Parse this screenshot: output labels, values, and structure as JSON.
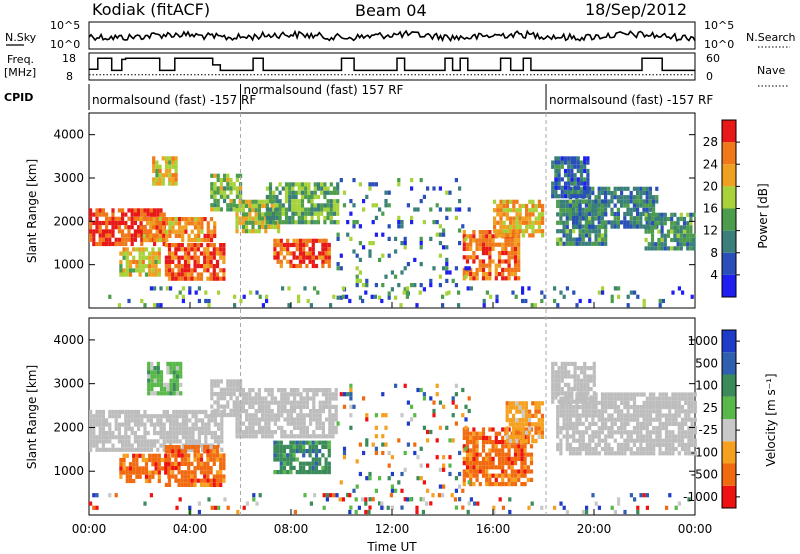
{
  "header": {
    "station": "Kodiak (fitACF)",
    "beam": "Beam 04",
    "date": "18/Sep/2012"
  },
  "noise_panel": {
    "left_label": "N.Sky",
    "right_label": "N.Search",
    "y_ticks_left": [
      "10^5",
      "10^0"
    ],
    "y_ticks_right": [
      "10^5",
      "10^0"
    ]
  },
  "freq_panel": {
    "left_label_1": "Freq.",
    "left_label_2": "[MHz]",
    "right_label": "Nave",
    "y_ticks_left": [
      "18",
      "8"
    ],
    "y_ticks_right": [
      "60",
      "0"
    ],
    "freq_segments": [
      {
        "start": 0.0,
        "end": 0.35,
        "level": 0.35
      },
      {
        "start": 0.35,
        "end": 0.9,
        "level": 0.85
      },
      {
        "start": 0.9,
        "end": 1.3,
        "level": 0.3
      },
      {
        "start": 1.3,
        "end": 1.45,
        "level": 0.8
      },
      {
        "start": 1.45,
        "end": 2.8,
        "level": 0.85
      },
      {
        "start": 2.8,
        "end": 3.4,
        "level": 0.3
      },
      {
        "start": 3.4,
        "end": 4.9,
        "level": 0.85
      },
      {
        "start": 4.9,
        "end": 5.2,
        "level": 0.55
      },
      {
        "start": 5.2,
        "end": 6.5,
        "level": 0.3
      },
      {
        "start": 6.5,
        "end": 6.9,
        "level": 0.85
      },
      {
        "start": 6.9,
        "end": 10.0,
        "level": 0.3
      },
      {
        "start": 10.0,
        "end": 10.5,
        "level": 0.85
      },
      {
        "start": 10.5,
        "end": 12.2,
        "level": 0.3
      },
      {
        "start": 12.2,
        "end": 12.5,
        "level": 0.85
      },
      {
        "start": 12.5,
        "end": 14.1,
        "level": 0.3
      },
      {
        "start": 14.1,
        "end": 14.4,
        "level": 0.85
      },
      {
        "start": 14.4,
        "end": 14.7,
        "level": 0.3
      },
      {
        "start": 14.7,
        "end": 15.0,
        "level": 0.85
      },
      {
        "start": 15.0,
        "end": 16.3,
        "level": 0.3
      },
      {
        "start": 16.3,
        "end": 16.7,
        "level": 0.85
      },
      {
        "start": 16.7,
        "end": 17.2,
        "level": 0.3
      },
      {
        "start": 17.2,
        "end": 17.5,
        "level": 0.85
      },
      {
        "start": 17.5,
        "end": 18.3,
        "level": 0.3
      },
      {
        "start": 18.3,
        "end": 21.9,
        "level": 0.3
      },
      {
        "start": 21.9,
        "end": 22.7,
        "level": 0.85
      },
      {
        "start": 22.7,
        "end": 24.0,
        "level": 0.3
      }
    ],
    "nave_level": 0.1
  },
  "cpid": {
    "label": "CPID",
    "segments": [
      {
        "text": "normalsound (fast) -157 RF",
        "start": 0.0
      },
      {
        "text": "normalsound (fast) 157 RF",
        "start": 6.0
      },
      {
        "text": "normalsound (fast) -157 RF",
        "start": 18.1
      }
    ]
  },
  "colors": {
    "ground_scatter": "#bdbdbd",
    "power_scale": [
      "#1e1ef0",
      "#2a4fb8",
      "#3a7f7a",
      "#4d9c4d",
      "#a8d23a",
      "#f0a020",
      "#f07818",
      "#e81818"
    ],
    "velocity_scale": [
      "#ee1111",
      "#f26a10",
      "#f6a020",
      "#c8c8c8",
      "#59b84a",
      "#3a8a5a",
      "#2e5fb0",
      "#1e3cc8"
    ]
  },
  "chart_data": [
    {
      "type": "heatmap",
      "panel": "power",
      "ylabel": "Slant Range [km]",
      "ylim": [
        0,
        4500
      ],
      "yticks": [
        1000,
        2000,
        3000,
        4000
      ],
      "xlim": [
        0,
        24
      ],
      "colorbar_label": "Power [dB]",
      "colorbar_ticks": [
        "4",
        "8",
        "12",
        "16",
        "20",
        "24",
        "28"
      ],
      "colorbar_range": [
        0,
        32
      ],
      "regions": [
        {
          "t0": 0.0,
          "t1": 3.0,
          "r0": 1500,
          "r1": 2300,
          "val": 27
        },
        {
          "t0": 2.0,
          "t1": 5.0,
          "r0": 1600,
          "r1": 2100,
          "val": 22
        },
        {
          "t0": 3.0,
          "t1": 5.3,
          "r0": 700,
          "r1": 1500,
          "val": 26
        },
        {
          "t0": 1.2,
          "t1": 2.8,
          "r0": 800,
          "r1": 1400,
          "val": 18
        },
        {
          "t0": 2.5,
          "t1": 3.5,
          "r0": 2900,
          "r1": 3500,
          "val": 18
        },
        {
          "t0": 4.8,
          "t1": 6.0,
          "r0": 2300,
          "r1": 3100,
          "val": 14
        },
        {
          "t0": 5.8,
          "t1": 7.5,
          "r0": 1800,
          "r1": 2500,
          "val": 16
        },
        {
          "t0": 7.0,
          "t1": 9.8,
          "r0": 2000,
          "r1": 2900,
          "val": 12
        },
        {
          "t0": 7.3,
          "t1": 9.5,
          "r0": 1000,
          "r1": 1600,
          "val": 25
        },
        {
          "t0": 14.8,
          "t1": 17.0,
          "r0": 700,
          "r1": 1800,
          "val": 24
        },
        {
          "t0": 16.0,
          "t1": 18.0,
          "r0": 1700,
          "r1": 2500,
          "val": 20
        },
        {
          "t0": 18.5,
          "t1": 20.5,
          "r0": 1500,
          "r1": 2500,
          "val": 10
        },
        {
          "t0": 19.0,
          "t1": 22.5,
          "r0": 1900,
          "r1": 2800,
          "val": 8
        },
        {
          "t0": 22.0,
          "t1": 24.0,
          "r0": 1400,
          "r1": 2200,
          "val": 10
        },
        {
          "t0": 18.3,
          "t1": 19.8,
          "r0": 2600,
          "r1": 3500,
          "val": 6
        },
        {
          "t0": 9.8,
          "t1": 15.0,
          "r0": 200,
          "r1": 3000,
          "val": 6,
          "sparse": true
        },
        {
          "t0": 0.0,
          "t1": 24.0,
          "r0": 100,
          "r1": 500,
          "val": 14,
          "sparse": true
        }
      ]
    },
    {
      "type": "heatmap",
      "panel": "velocity",
      "ylabel": "Slant Range [km]",
      "xlabel": "Time UT",
      "ylim": [
        0,
        4500
      ],
      "yticks": [
        1000,
        2000,
        3000,
        4000
      ],
      "xlim": [
        0,
        24
      ],
      "xticks": [
        "00:00",
        "04:00",
        "08:00",
        "12:00",
        "16:00",
        "20:00",
        "00:00"
      ],
      "colorbar_label": "Velocity [m s⁻¹]",
      "colorbar_ticks": [
        "-1000",
        "-500",
        "-100",
        "-25",
        "25",
        "100",
        "500",
        "1000"
      ],
      "regions": [
        {
          "t0": 0.0,
          "t1": 5.3,
          "r0": 1500,
          "r1": 2400,
          "val": "ground"
        },
        {
          "t0": 3.0,
          "t1": 5.3,
          "r0": 700,
          "r1": 1600,
          "val": "-500"
        },
        {
          "t0": 1.2,
          "t1": 3.2,
          "r0": 800,
          "r1": 1400,
          "val": "-500"
        },
        {
          "t0": 2.3,
          "t1": 3.6,
          "r0": 2800,
          "r1": 3500,
          "val": "100"
        },
        {
          "t0": 4.8,
          "t1": 6.0,
          "r0": 2300,
          "r1": 3100,
          "val": "ground"
        },
        {
          "t0": 5.8,
          "t1": 9.8,
          "r0": 1800,
          "r1": 2900,
          "val": "ground"
        },
        {
          "t0": 7.3,
          "t1": 9.5,
          "r0": 1000,
          "r1": 1700,
          "val": "500"
        },
        {
          "t0": 14.8,
          "t1": 17.5,
          "r0": 700,
          "r1": 2000,
          "val": "-500"
        },
        {
          "t0": 16.5,
          "t1": 18.0,
          "r0": 1700,
          "r1": 2600,
          "val": "-100"
        },
        {
          "t0": 18.5,
          "t1": 24.0,
          "r0": 1400,
          "r1": 2800,
          "val": "ground"
        },
        {
          "t0": 18.3,
          "t1": 20.0,
          "r0": 2600,
          "r1": 3500,
          "val": "ground"
        },
        {
          "t0": 9.8,
          "t1": 15.0,
          "r0": 200,
          "r1": 3000,
          "val": "mixed",
          "sparse": true
        },
        {
          "t0": 0.0,
          "t1": 24.0,
          "r0": 100,
          "r1": 500,
          "val": "mixed",
          "sparse": true
        }
      ]
    }
  ]
}
